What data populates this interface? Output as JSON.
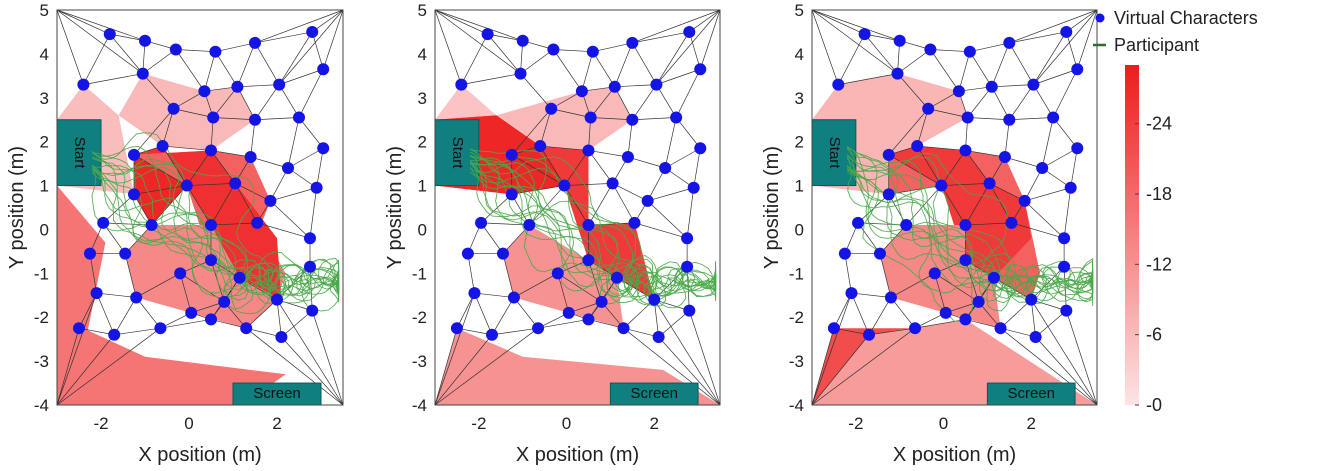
{
  "chart_data": [
    {
      "type": "scatter",
      "xlabel": "X position (m)",
      "ylabel": "Y position (m)",
      "xlim": [
        -3,
        3.5
      ],
      "ylim": [
        -4,
        5
      ],
      "xticks": [
        "-2",
        "0",
        "2"
      ],
      "yticks": [
        "5",
        "4",
        "3",
        "2",
        "1",
        "0",
        "-1",
        "-2",
        "-3",
        "-4"
      ],
      "start_label": "Start",
      "screen_label": "Screen"
    },
    {
      "type": "scatter",
      "xlabel": "X position (m)",
      "ylabel": "Y position (m)",
      "xlim": [
        -3,
        3.5
      ],
      "ylim": [
        -4,
        5
      ],
      "xticks": [
        "-2",
        "0",
        "2"
      ],
      "yticks": [
        "5",
        "4",
        "3",
        "2",
        "1",
        "0",
        "-1",
        "-2",
        "-3",
        "-4"
      ],
      "start_label": "Start",
      "screen_label": "Screen"
    },
    {
      "type": "scatter",
      "xlabel": "X position (m)",
      "ylabel": "Y position (m)",
      "xlim": [
        -3,
        3.5
      ],
      "ylim": [
        -4,
        5
      ],
      "xticks": [
        "-2",
        "0",
        "2"
      ],
      "yticks": [
        "5",
        "4",
        "3",
        "2",
        "1",
        "0",
        "-1",
        "-2",
        "-3",
        "-4"
      ],
      "start_label": "Start",
      "screen_label": "Screen"
    }
  ],
  "characters": [
    [
      -1.8,
      4.45
    ],
    [
      -1.0,
      4.3
    ],
    [
      -0.3,
      4.1
    ],
    [
      0.6,
      4.05
    ],
    [
      1.5,
      4.25
    ],
    [
      2.8,
      4.5
    ],
    [
      -2.4,
      3.3
    ],
    [
      -1.05,
      3.55
    ],
    [
      0.35,
      3.15
    ],
    [
      1.1,
      3.25
    ],
    [
      2.05,
      3.3
    ],
    [
      3.05,
      3.65
    ],
    [
      -0.35,
      2.75
    ],
    [
      0.55,
      2.55
    ],
    [
      1.5,
      2.5
    ],
    [
      2.5,
      2.55
    ],
    [
      3.05,
      1.85
    ],
    [
      -1.25,
      1.7
    ],
    [
      -0.6,
      1.9
    ],
    [
      0.5,
      1.8
    ],
    [
      1.4,
      1.65
    ],
    [
      2.25,
      1.4
    ],
    [
      -1.25,
      0.8
    ],
    [
      -0.05,
      1.0
    ],
    [
      1.05,
      1.05
    ],
    [
      1.85,
      0.65
    ],
    [
      2.9,
      0.95
    ],
    [
      -1.95,
      0.15
    ],
    [
      -0.85,
      0.1
    ],
    [
      0.5,
      0.1
    ],
    [
      1.55,
      0.15
    ],
    [
      2.75,
      -0.2
    ],
    [
      -2.25,
      -0.55
    ],
    [
      -1.45,
      -0.55
    ],
    [
      0.5,
      -0.7
    ],
    [
      -0.2,
      -1.0
    ],
    [
      1.15,
      -1.1
    ],
    [
      2.75,
      -0.85
    ],
    [
      -2.1,
      -1.45
    ],
    [
      -1.2,
      -1.55
    ],
    [
      0.05,
      -1.9
    ],
    [
      0.8,
      -1.65
    ],
    [
      2.0,
      -1.6
    ],
    [
      2.8,
      -1.85
    ],
    [
      -2.5,
      -2.25
    ],
    [
      -1.7,
      -2.4
    ],
    [
      -0.65,
      -2.25
    ],
    [
      0.5,
      -2.05
    ],
    [
      1.3,
      -2.25
    ],
    [
      2.1,
      -2.45
    ]
  ],
  "legend": {
    "characters_label": "Virtual Characters",
    "participant_label": "Participant"
  },
  "colorbar": {
    "ticks": [
      "24",
      "18",
      "12",
      "6",
      "0"
    ],
    "min": 0,
    "max": 29,
    "color_low": "#fde0e0",
    "color_high": "#ee1c1c"
  },
  "colors": {
    "marker": "#1414e6",
    "trajectory": "#4aa84a",
    "zone_fill": "#0f7f7f"
  }
}
